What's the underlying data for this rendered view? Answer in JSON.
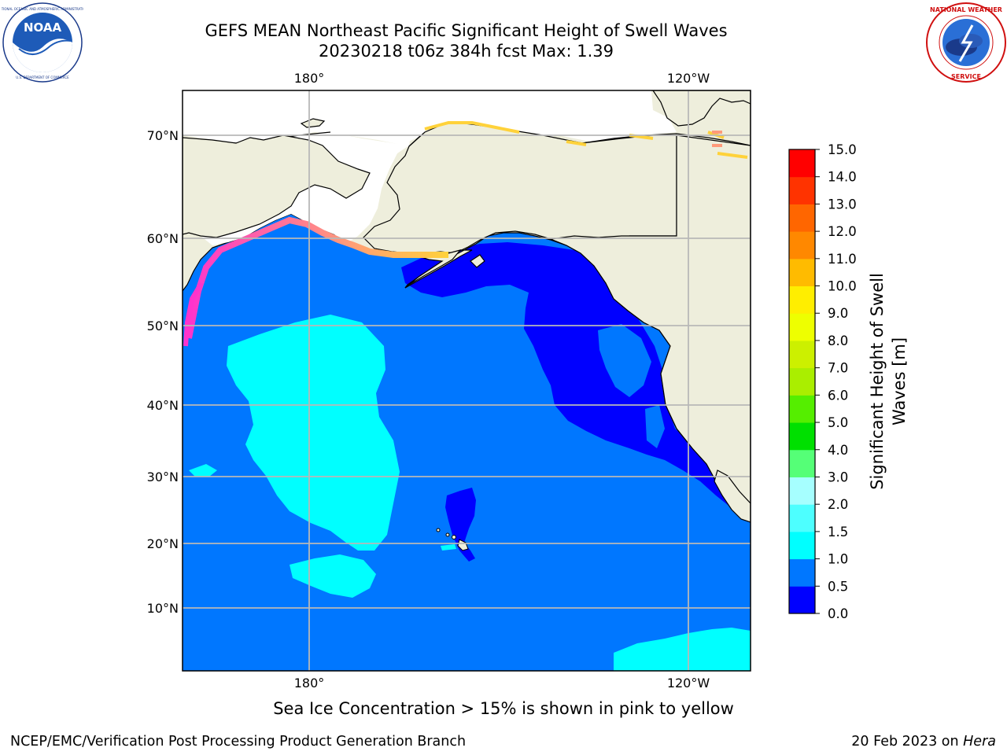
{
  "title": {
    "line1": "GEFS MEAN Northeast Pacific Significant Height of Swell Waves",
    "line2": "20230218 t06z 384h fcst   Max: 1.39"
  },
  "logos": {
    "left": {
      "icon": "noaa-logo-icon",
      "text": "NOAA",
      "ring_text": "NATIONAL OCEANIC AND ATMOSPHERIC ADMINISTRATION · U.S. DEPARTMENT OF COMMERCE"
    },
    "right": {
      "icon": "nws-logo-icon",
      "ring_text": "NATIONAL WEATHER SERVICE"
    }
  },
  "map": {
    "lon_labels_top": [
      "180°",
      "120°W"
    ],
    "lon_labels_bottom": [
      "180°",
      "120°W"
    ],
    "lat_labels": [
      "70°N",
      "60°N",
      "50°N",
      "40°N",
      "30°N",
      "20°N",
      "10°N"
    ],
    "colors": {
      "ocean_base": "#0077ff",
      "low_swell": "#0000ff",
      "mid_swell": "#00ffff",
      "land": "#eeeedc",
      "ice_pink": "#ff33cc",
      "ice_salmon": "#ff9a7a",
      "ice_yellow": "#ffd23a",
      "gridline": "#b8b8b8",
      "coast": "#000000"
    }
  },
  "colorbar": {
    "ticks": [
      "15.0",
      "14.0",
      "13.0",
      "12.0",
      "11.0",
      "10.0",
      "9.0",
      "8.0",
      "7.0",
      "6.0",
      "5.0",
      "4.0",
      "3.0",
      "2.0",
      "1.5",
      "1.0",
      "0.5",
      "0.0"
    ],
    "colors": [
      "#0000ff",
      "#0077ff",
      "#00ffff",
      "#4dffff",
      "#a6ffff",
      "#55ff77",
      "#00e000",
      "#55ee00",
      "#aaee00",
      "#ccf000",
      "#eeff00",
      "#ffee00",
      "#ffbb00",
      "#ff8800",
      "#ff6600",
      "#ff3300",
      "#ff0000"
    ],
    "label_line1": "Significant Height of Swell",
    "label_line2": "Waves [m]"
  },
  "note": "Sea Ice Concentration > 15% is shown in pink to yellow",
  "footer": {
    "left": "NCEP/EMC/Verification Post Processing Product Generation Branch",
    "right_prefix": "20 Feb 2023 on ",
    "right_machine": "Hera"
  }
}
